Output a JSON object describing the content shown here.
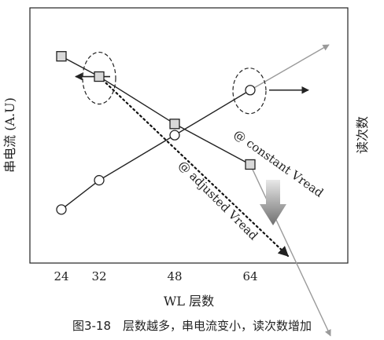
{
  "caption": "图3-18　层数越多，串电流变小，读次数增加",
  "chart_data": {
    "type": "line",
    "categories": [
      "24",
      "32",
      "48",
      "64"
    ],
    "xlabel": "WL 层数",
    "ylabel_left": "串电流 (A.U)",
    "ylabel_right": "读次数",
    "series": [
      {
        "name": "@ constant Vread",
        "marker": "square",
        "values": [
          9.0,
          8.1,
          6.0,
          4.2
        ],
        "trend_extension": 2.8
      },
      {
        "name": "@ adjusted Vread",
        "marker": "none",
        "line_style": "dotted",
        "from_category": "32",
        "from_value": 8.1,
        "trend_extension": 0.4
      },
      {
        "name": "",
        "marker": "circle",
        "values": [
          2.2,
          3.5,
          5.5,
          7.5
        ],
        "trend_extension": 10.8
      }
    ],
    "annotations": [
      {
        "type": "arrow-left",
        "at_category": "32",
        "series_marker": "square"
      },
      {
        "type": "arrow-right",
        "at_category": "64",
        "series_marker": "circle"
      },
      {
        "type": "arrow-down",
        "between": "constant-and-adjusted"
      }
    ],
    "colors": {
      "line": "#222222",
      "trend": "#9a9a9a",
      "marker_fill": "#d9d9d9"
    }
  }
}
